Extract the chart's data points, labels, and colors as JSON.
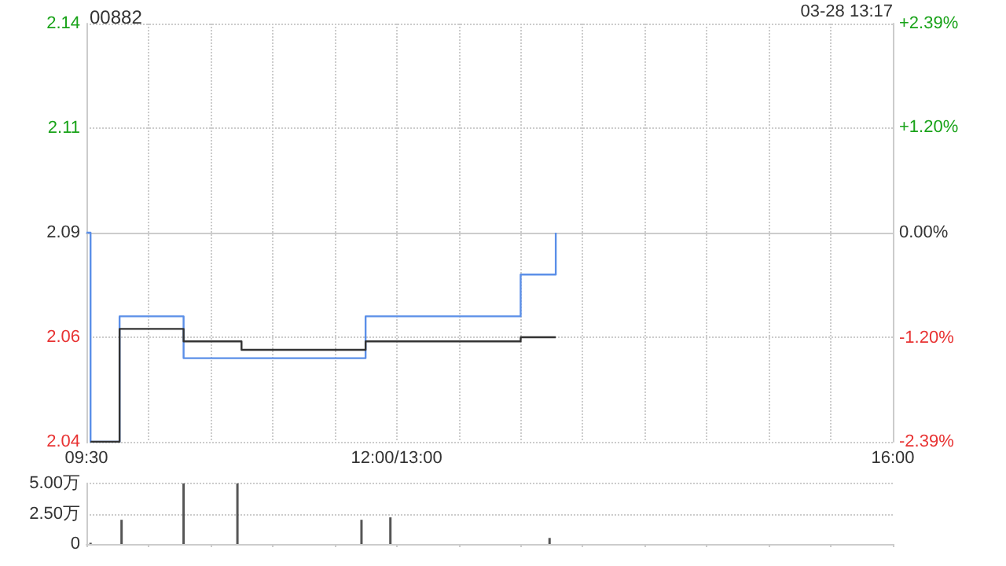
{
  "chart_data": [
    {
      "type": "step",
      "title": "00882",
      "annotations": [
        "03-28 13:17"
      ],
      "series": [
        {
          "color": "#5b8fe8",
          "x": [
            9.5,
            9.533,
            9.767,
            10.283,
            11.75,
            13,
            13.283
          ],
          "values": [
            2.09,
            2.04,
            2.07,
            2.06,
            2.07,
            2.08,
            2.09
          ]
        },
        {
          "color": "#333333",
          "x": [
            9.533,
            9.767,
            10.283,
            10.75,
            11.75,
            13,
            13.283
          ],
          "values": [
            2.04,
            2.067,
            2.064,
            2.062,
            2.064,
            2.065,
            2.065
          ]
        }
      ],
      "xlim": [
        9.5,
        16
      ],
      "xticks": [
        {
          "value": 9.5,
          "label": "09:30"
        },
        {
          "value": 10,
          "label": null
        },
        {
          "value": 10.5,
          "label": null
        },
        {
          "value": 11,
          "label": null
        },
        {
          "value": 11.5,
          "label": null
        },
        {
          "value": 12,
          "label": "12:00/13:00"
        },
        {
          "value": 12.5,
          "label": null
        },
        {
          "value": 13,
          "label": null
        },
        {
          "value": 13.5,
          "label": null
        },
        {
          "value": 14,
          "label": null
        },
        {
          "value": 14.5,
          "label": null
        },
        {
          "value": 15,
          "label": null
        },
        {
          "value": 15.5,
          "label": null
        },
        {
          "value": 16,
          "label": "16:00"
        }
      ],
      "ylim": [
        2.04,
        2.14
      ],
      "yticks": [
        {
          "value": 2.04,
          "label": "2.04"
        },
        {
          "value": 2.065,
          "label": "2.06"
        },
        {
          "value": 2.09,
          "label": "2.09"
        },
        {
          "value": 2.115,
          "label": "2.11"
        },
        {
          "value": 2.14,
          "label": "2.14"
        }
      ],
      "y2lim": [
        -2.39,
        2.39
      ],
      "y2ticks": [
        {
          "value": -2.39,
          "label": "-2.39%"
        },
        {
          "value": -1.2,
          "label": "-1.20%"
        },
        {
          "value": 0,
          "label": "0.00%"
        },
        {
          "value": 1.2,
          "label": "+1.20%"
        },
        {
          "value": 2.39,
          "label": "+2.39%"
        }
      ],
      "grid": true,
      "marker": "none",
      "line_style": "solid"
    },
    {
      "type": "bar",
      "color": "#555555",
      "x": [
        9.533,
        9.783,
        10.283,
        10.717,
        11.717,
        11.95,
        13.233
      ],
      "values": [
        0.1,
        2.0,
        5.0,
        5.0,
        2.0,
        2.2,
        0.5
      ],
      "xlim": [
        9.5,
        16
      ],
      "xticks": [
        {
          "value": 9.5,
          "label": null
        },
        {
          "value": 10,
          "label": null
        },
        {
          "value": 10.5,
          "label": null
        },
        {
          "value": 11,
          "label": null
        },
        {
          "value": 11.5,
          "label": null
        },
        {
          "value": 12,
          "label": null
        },
        {
          "value": 12.5,
          "label": null
        },
        {
          "value": 13,
          "label": null
        },
        {
          "value": 13.5,
          "label": null
        },
        {
          "value": 14,
          "label": null
        },
        {
          "value": 14.5,
          "label": null
        },
        {
          "value": 15,
          "label": null
        },
        {
          "value": 15.5,
          "label": null
        },
        {
          "value": 16,
          "label": null
        }
      ],
      "ylim": [
        0,
        5
      ],
      "yticks": [
        0,
        {
          "value": 2.5,
          "label": "2.50万"
        },
        {
          "value": 5,
          "label": "5.00万"
        }
      ],
      "grid": "y",
      "tick_labels": "y"
    }
  ]
}
